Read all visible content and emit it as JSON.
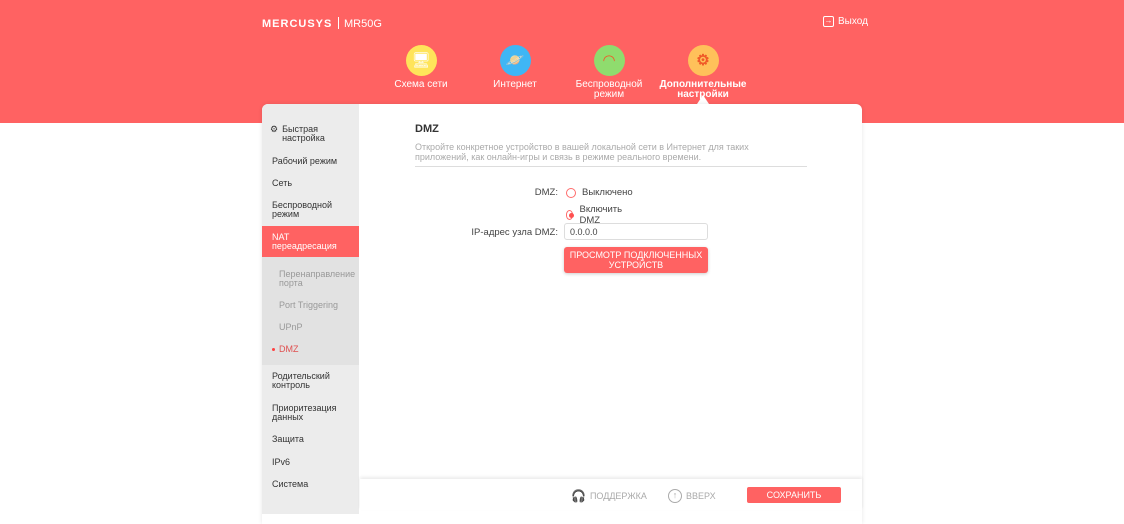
{
  "header": {
    "brand": "MERCUSYS",
    "model": "MR50G",
    "logout": "Выход",
    "nav": [
      {
        "label": "Схема сети",
        "icon": "network-map-icon",
        "color": "#ffe45a"
      },
      {
        "label": "Интернет",
        "icon": "planet-icon",
        "color": "#3fb6f5"
      },
      {
        "label": "Беспроводной режим",
        "icon": "wifi-icon",
        "color": "#8fdc6e"
      },
      {
        "label": "Дополнительные настройки",
        "icon": "gear-icon",
        "color": "#ffc15a"
      }
    ]
  },
  "sidebar": {
    "items": [
      "Быстрая настройка",
      "Рабочий режим",
      "Сеть",
      "Беспроводной режим",
      "NAT переадресация",
      "Родительский контроль",
      "Приоритезация данных",
      "Защита",
      "IPv6",
      "Система"
    ],
    "sub": [
      "Перенаправление порта",
      "Port Triggering",
      "UPnP",
      "DMZ"
    ]
  },
  "main": {
    "title": "DMZ",
    "description": "Откройте конкретное устройство в вашей локальной сети в Интернет для таких приложений, как онлайн-игры и связь в режиме реального времени.",
    "dmz_label": "DMZ:",
    "option_off": "Выключено",
    "option_on": "Включить DMZ",
    "selected": "Включить DMZ",
    "ip_label": "IP-адрес узла DMZ:",
    "ip_value": "0.0.0.0",
    "view_button": "ПРОСМОТР ПОДКЛЮЧЕННЫХ УСТРОЙСТВ"
  },
  "footer": {
    "support": "ПОДДЕРЖКА",
    "top": "ВВЕРХ",
    "save": "СОХРАНИТЬ"
  }
}
